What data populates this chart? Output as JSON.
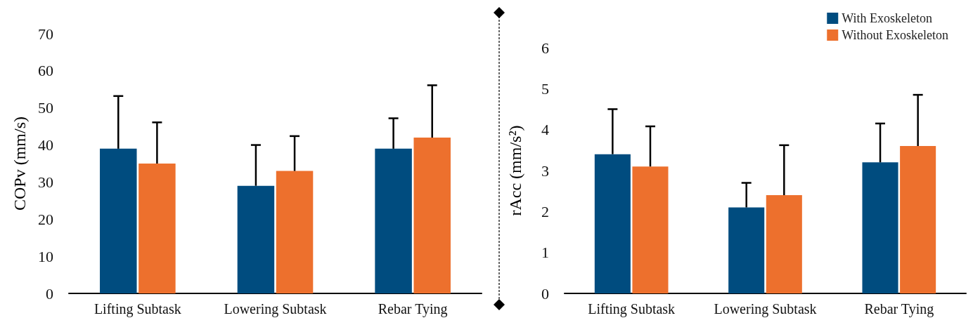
{
  "chart_data": [
    {
      "type": "bar",
      "ylabel": "COPv (mm/s)",
      "categories": [
        "Lifting Subtask",
        "Lowering Subtask",
        "Rebar Tying"
      ],
      "ylim": [
        0,
        70
      ],
      "yticks": [
        0,
        10,
        20,
        30,
        40,
        50,
        60,
        70
      ],
      "grid": false,
      "series": [
        {
          "color": "#004c7f",
          "values": [
            39,
            29,
            39
          ],
          "errors": [
            [
              39,
              53.2
            ],
            [
              29,
              40
            ],
            [
              39,
              47.2
            ]
          ]
        },
        {
          "color": "#ed702d",
          "values": [
            35,
            33,
            42
          ],
          "errors": [
            [
              35,
              46.1
            ],
            [
              33,
              42.4
            ],
            [
              42,
              56.1
            ]
          ]
        }
      ]
    },
    {
      "type": "bar",
      "ylabel": "rAcc (mm/s²)",
      "categories": [
        "Lifting Subtask",
        "Lowering Subtask",
        "Rebar Tying"
      ],
      "ylim": [
        0,
        6
      ],
      "yticks": [
        0,
        1,
        2,
        3,
        4,
        5,
        6
      ],
      "grid": false,
      "legend": "top right",
      "series": [
        {
          "name": "With Exoskeleton",
          "color": "#004c7f",
          "values": [
            3.4,
            2.1,
            3.2
          ],
          "errors": [
            [
              3.4,
              4.5
            ],
            [
              2.1,
              2.7
            ],
            [
              3.2,
              4.15
            ]
          ]
        },
        {
          "name": "Without Exoskeleton",
          "color": "#ed702d",
          "values": [
            3.1,
            2.4,
            3.6
          ],
          "errors": [
            [
              3.1,
              4.08
            ],
            [
              2.4,
              3.62
            ],
            [
              3.6,
              4.85
            ]
          ]
        }
      ]
    }
  ]
}
